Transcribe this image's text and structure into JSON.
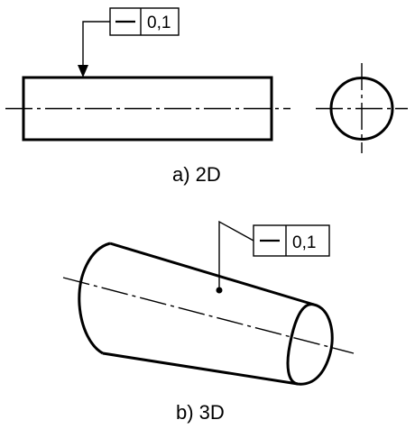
{
  "view_2d": {
    "caption": "a) 2D",
    "tolerance_symbol": "straightness",
    "tolerance_value": "0,1"
  },
  "view_3d": {
    "caption": "b) 3D",
    "tolerance_symbol": "straightness",
    "tolerance_value": "0,1"
  }
}
